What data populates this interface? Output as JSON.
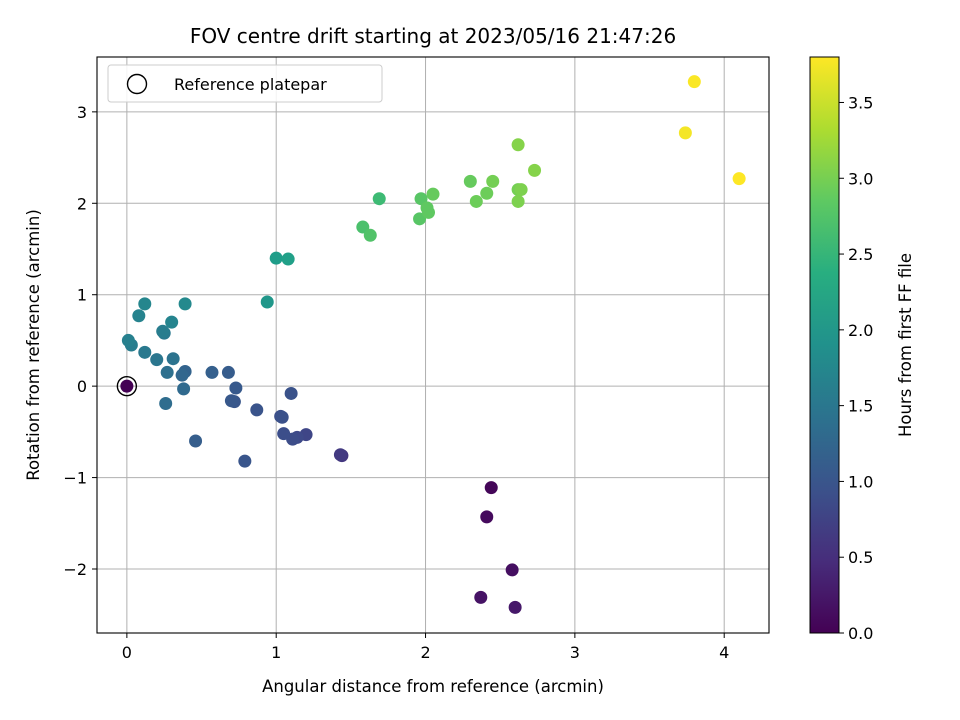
{
  "chart_data": {
    "type": "scatter",
    "title": "FOV centre drift starting at 2023/05/16 21:47:26",
    "xlabel": "Angular distance from reference (arcmin)",
    "ylabel": "Rotation from reference (arcmin)",
    "xlim": [
      -0.2,
      4.3
    ],
    "ylim": [
      -2.7,
      3.6
    ],
    "xticks": [
      0,
      1,
      2,
      3,
      4
    ],
    "xtick_labels": [
      "0",
      "1",
      "2",
      "3",
      "4"
    ],
    "yticks": [
      -2,
      -1,
      0,
      1,
      2,
      3
    ],
    "ytick_labels": [
      "−2",
      "−1",
      "0",
      "1",
      "2",
      "3"
    ],
    "grid": true,
    "legend": {
      "placement": "top-left",
      "entries": [
        "Reference platepar"
      ]
    },
    "reference_point": {
      "x": 0,
      "y": 0,
      "c": 0.0
    },
    "colorbar": {
      "label": "Hours from first FF file",
      "colormap": "viridis",
      "range": [
        0.0,
        3.8
      ],
      "ticks": [
        0.0,
        0.5,
        1.0,
        1.5,
        2.0,
        2.5,
        3.0,
        3.5
      ],
      "tick_labels": [
        "0.0",
        "0.5",
        "1.0",
        "1.5",
        "2.0",
        "2.5",
        "3.0",
        "3.5"
      ]
    },
    "points": [
      {
        "x": 0.0,
        "y": 0.0,
        "c": 0.0
      },
      {
        "x": 2.44,
        "y": -1.11,
        "c": 0.05
      },
      {
        "x": 2.41,
        "y": -1.43,
        "c": 0.1
      },
      {
        "x": 2.58,
        "y": -2.01,
        "c": 0.15
      },
      {
        "x": 2.37,
        "y": -2.31,
        "c": 0.2
      },
      {
        "x": 2.6,
        "y": -2.42,
        "c": 0.25
      },
      {
        "x": 1.44,
        "y": -0.76,
        "c": 0.6
      },
      {
        "x": 1.43,
        "y": -0.75,
        "c": 0.65
      },
      {
        "x": 1.2,
        "y": -0.53,
        "c": 0.8
      },
      {
        "x": 1.14,
        "y": -0.56,
        "c": 0.85
      },
      {
        "x": 1.11,
        "y": -0.58,
        "c": 0.88
      },
      {
        "x": 1.05,
        "y": -0.52,
        "c": 0.9
      },
      {
        "x": 1.03,
        "y": -0.33,
        "c": 0.92
      },
      {
        "x": 1.04,
        "y": -0.34,
        "c": 0.94
      },
      {
        "x": 1.1,
        "y": -0.08,
        "c": 0.96
      },
      {
        "x": 0.87,
        "y": -0.26,
        "c": 0.98
      },
      {
        "x": 0.79,
        "y": -0.82,
        "c": 1.0
      },
      {
        "x": 0.72,
        "y": -0.17,
        "c": 1.02
      },
      {
        "x": 0.7,
        "y": -0.16,
        "c": 1.04
      },
      {
        "x": 0.73,
        "y": -0.02,
        "c": 1.06
      },
      {
        "x": 0.68,
        "y": 0.15,
        "c": 1.1
      },
      {
        "x": 0.57,
        "y": 0.15,
        "c": 1.15
      },
      {
        "x": 0.46,
        "y": -0.6,
        "c": 1.12
      },
      {
        "x": 0.39,
        "y": 0.16,
        "c": 1.2
      },
      {
        "x": 0.37,
        "y": 0.12,
        "c": 1.25
      },
      {
        "x": 0.38,
        "y": -0.03,
        "c": 1.3
      },
      {
        "x": 0.26,
        "y": -0.19,
        "c": 1.35
      },
      {
        "x": 0.27,
        "y": 0.15,
        "c": 1.4
      },
      {
        "x": 0.31,
        "y": 0.3,
        "c": 1.45
      },
      {
        "x": 0.2,
        "y": 0.29,
        "c": 1.5
      },
      {
        "x": 0.25,
        "y": 0.58,
        "c": 1.55
      },
      {
        "x": 0.24,
        "y": 0.6,
        "c": 1.6
      },
      {
        "x": 0.12,
        "y": 0.37,
        "c": 1.55
      },
      {
        "x": 0.03,
        "y": 0.45,
        "c": 1.6
      },
      {
        "x": 0.01,
        "y": 0.5,
        "c": 1.65
      },
      {
        "x": 0.08,
        "y": 0.77,
        "c": 1.7
      },
      {
        "x": 0.3,
        "y": 0.7,
        "c": 1.72
      },
      {
        "x": 0.12,
        "y": 0.9,
        "c": 1.75
      },
      {
        "x": 0.39,
        "y": 0.9,
        "c": 1.8
      },
      {
        "x": 0.94,
        "y": 0.92,
        "c": 2.0
      },
      {
        "x": 1.0,
        "y": 1.4,
        "c": 2.1
      },
      {
        "x": 1.08,
        "y": 1.39,
        "c": 2.15
      },
      {
        "x": 1.69,
        "y": 2.05,
        "c": 2.6
      },
      {
        "x": 1.58,
        "y": 1.74,
        "c": 2.7
      },
      {
        "x": 1.63,
        "y": 1.65,
        "c": 2.75
      },
      {
        "x": 1.97,
        "y": 2.05,
        "c": 2.8
      },
      {
        "x": 1.96,
        "y": 1.83,
        "c": 2.8
      },
      {
        "x": 2.02,
        "y": 1.9,
        "c": 2.85
      },
      {
        "x": 2.01,
        "y": 1.95,
        "c": 2.85
      },
      {
        "x": 2.05,
        "y": 2.1,
        "c": 2.9
      },
      {
        "x": 2.3,
        "y": 2.24,
        "c": 2.9
      },
      {
        "x": 2.34,
        "y": 2.02,
        "c": 2.95
      },
      {
        "x": 2.41,
        "y": 2.11,
        "c": 2.95
      },
      {
        "x": 2.45,
        "y": 2.24,
        "c": 3.0
      },
      {
        "x": 2.62,
        "y": 2.15,
        "c": 3.0
      },
      {
        "x": 2.64,
        "y": 2.15,
        "c": 3.05
      },
      {
        "x": 2.62,
        "y": 2.02,
        "c": 3.05
      },
      {
        "x": 2.62,
        "y": 2.64,
        "c": 3.1
      },
      {
        "x": 2.73,
        "y": 2.36,
        "c": 3.1
      },
      {
        "x": 3.74,
        "y": 2.77,
        "c": 3.75
      },
      {
        "x": 3.8,
        "y": 3.33,
        "c": 3.78
      },
      {
        "x": 4.1,
        "y": 2.27,
        "c": 3.8
      }
    ]
  }
}
